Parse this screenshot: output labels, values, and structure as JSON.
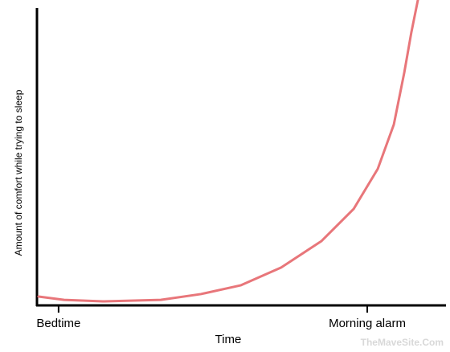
{
  "chart_data": {
    "type": "line",
    "xlabel": "Time",
    "ylabel": "Amount of comfort while trying to sleep",
    "watermark": "TheMaveSite.Com",
    "xlim": [
      -0.07,
      1.255
    ],
    "ylim": [
      0,
      1
    ],
    "xticks": [
      {
        "value": 0,
        "label": "Bedtime"
      },
      {
        "value": 1,
        "label": "Morning alarm"
      }
    ],
    "x": [
      -0.065,
      0.018,
      0.148,
      0.331,
      0.461,
      0.591,
      0.721,
      0.852,
      0.956,
      1.034,
      1.086,
      1.12,
      1.143,
      1.164
    ],
    "series": [
      {
        "color": "#e8767a",
        "values": [
          0.029,
          0.018,
          0.013,
          0.018,
          0.037,
          0.066,
          0.124,
          0.211,
          0.316,
          0.447,
          0.592,
          0.763,
          0.895,
          1.0
        ]
      }
    ]
  }
}
